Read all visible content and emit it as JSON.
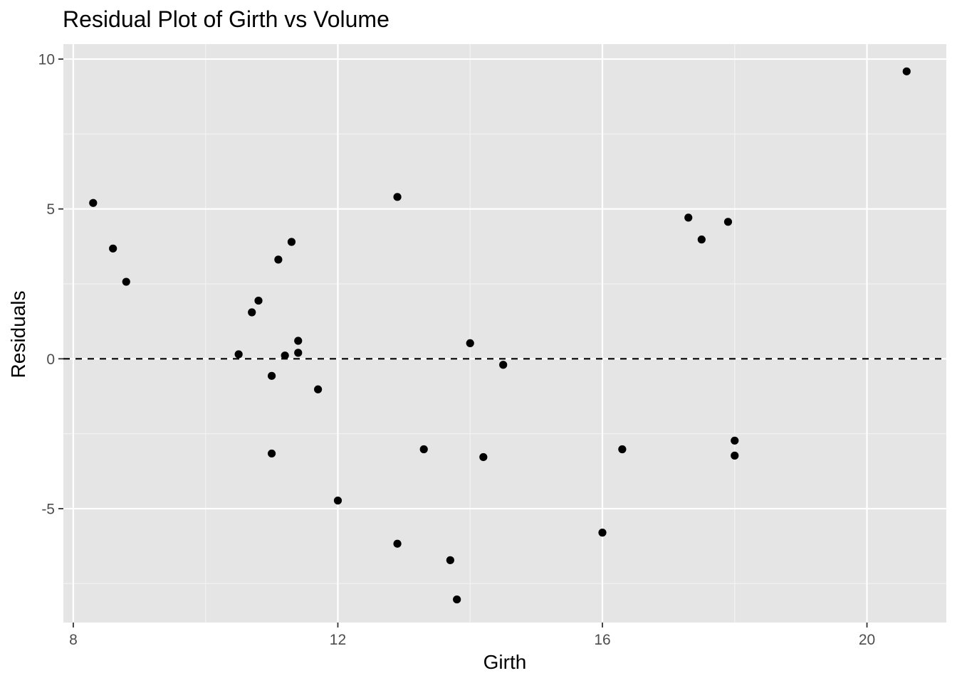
{
  "chart_data": {
    "type": "scatter",
    "title": "Residual Plot of Girth vs Volume",
    "xlabel": "Girth",
    "ylabel": "Residuals",
    "xlim": [
      7.85,
      21.2
    ],
    "ylim": [
      -8.8,
      10.5
    ],
    "x_ticks": [
      8,
      12,
      16,
      20
    ],
    "x_tick_labels": [
      "8",
      "12",
      "16",
      "20"
    ],
    "y_ticks": [
      -5,
      0,
      5,
      10
    ],
    "y_tick_labels": [
      "-5",
      "0",
      "5",
      "10"
    ],
    "grid": true,
    "reference_line": {
      "y": 0,
      "style": "dashed"
    },
    "points": [
      {
        "x": 8.3,
        "y": 5.2
      },
      {
        "x": 8.6,
        "y": 3.68
      },
      {
        "x": 8.8,
        "y": 2.57
      },
      {
        "x": 10.5,
        "y": 0.15
      },
      {
        "x": 10.7,
        "y": 1.55
      },
      {
        "x": 10.8,
        "y": 1.94
      },
      {
        "x": 11.0,
        "y": -0.57
      },
      {
        "x": 11.0,
        "y": -3.16
      },
      {
        "x": 11.1,
        "y": 3.31
      },
      {
        "x": 11.2,
        "y": 0.11
      },
      {
        "x": 11.3,
        "y": 3.9
      },
      {
        "x": 11.4,
        "y": 0.6
      },
      {
        "x": 11.4,
        "y": 0.2
      },
      {
        "x": 11.7,
        "y": -1.02
      },
      {
        "x": 12.0,
        "y": -4.73
      },
      {
        "x": 12.9,
        "y": 5.4
      },
      {
        "x": 12.9,
        "y": -6.17
      },
      {
        "x": 13.3,
        "y": -3.02
      },
      {
        "x": 13.7,
        "y": -6.72
      },
      {
        "x": 13.8,
        "y": -8.03
      },
      {
        "x": 14.0,
        "y": 0.52
      },
      {
        "x": 14.2,
        "y": -3.28
      },
      {
        "x": 14.5,
        "y": -0.2
      },
      {
        "x": 16.0,
        "y": -5.8
      },
      {
        "x": 16.3,
        "y": -3.02
      },
      {
        "x": 17.3,
        "y": 4.71
      },
      {
        "x": 17.5,
        "y": 3.98
      },
      {
        "x": 17.9,
        "y": 4.57
      },
      {
        "x": 18.0,
        "y": -2.73
      },
      {
        "x": 18.0,
        "y": -3.23
      },
      {
        "x": 20.6,
        "y": 9.59
      }
    ],
    "colors": {
      "panel": "#e5e5e5",
      "grid_major": "#ffffff",
      "grid_minor": "#f2f2f2",
      "point": "#000000",
      "tick_text": "#4d4d4d"
    }
  }
}
